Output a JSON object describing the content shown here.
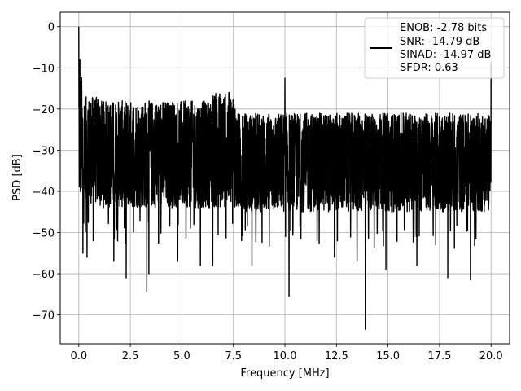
{
  "chart_data": {
    "type": "line",
    "xlabel": "Frequency [MHz]",
    "ylabel": "PSD [dB]",
    "xlim": [
      -0.9,
      20.9
    ],
    "ylim": [
      -77,
      3.5
    ],
    "xticks": [
      0.0,
      2.5,
      5.0,
      7.5,
      10.0,
      12.5,
      15.0,
      17.5,
      20.0
    ],
    "xtick_labels": [
      "0.0",
      "2.5",
      "5.0",
      "7.5",
      "10.0",
      "12.5",
      "15.0",
      "17.5",
      "20.0"
    ],
    "yticks": [
      0,
      -10,
      -20,
      -30,
      -40,
      -50,
      -60,
      -70
    ],
    "ytick_labels": [
      "0",
      "−10",
      "−20",
      "−30",
      "−40",
      "−50",
      "−60",
      "−70"
    ],
    "grid": true,
    "legend_position": "upper right",
    "legend": {
      "entries": [
        "ENOB: -2.78 bits",
        "SNR: -14.79 dB",
        "SINAD: -14.97 dB",
        "SFDR: 0.63"
      ]
    },
    "series": [
      {
        "color": "#000000",
        "noise_band": [
          {
            "x_range": [
              0.0,
              0.15
            ],
            "upper": -15,
            "lower": -45
          },
          {
            "x_range": [
              0.15,
              1.0
            ],
            "upper": -20,
            "lower": -46
          },
          {
            "x_range": [
              1.0,
              6.5
            ],
            "upper": -21,
            "lower": -47
          },
          {
            "x_range": [
              6.5,
              7.6
            ],
            "upper": -19,
            "lower": -47
          },
          {
            "x_range": [
              7.6,
              20.0
            ],
            "upper": -24,
            "lower": -48
          }
        ],
        "peaks": [
          {
            "x": 0.0,
            "y": 0
          },
          {
            "x": 0.05,
            "y": -8
          },
          {
            "x": 7.3,
            "y": -16
          },
          {
            "x": 10.0,
            "y": -12.5
          },
          {
            "x": 20.0,
            "y": -8.5
          }
        ],
        "dips": [
          {
            "x": 0.2,
            "y": -55
          },
          {
            "x": 0.4,
            "y": -56
          },
          {
            "x": 0.7,
            "y": -52
          },
          {
            "x": 1.7,
            "y": -57
          },
          {
            "x": 2.3,
            "y": -61
          },
          {
            "x": 3.3,
            "y": -64.5
          },
          {
            "x": 3.4,
            "y": -60
          },
          {
            "x": 4.8,
            "y": -57
          },
          {
            "x": 5.9,
            "y": -58
          },
          {
            "x": 6.5,
            "y": -58
          },
          {
            "x": 7.9,
            "y": -52
          },
          {
            "x": 8.4,
            "y": -58
          },
          {
            "x": 10.2,
            "y": -65.5
          },
          {
            "x": 12.4,
            "y": -56
          },
          {
            "x": 13.5,
            "y": -57
          },
          {
            "x": 13.9,
            "y": -73.5
          },
          {
            "x": 14.9,
            "y": -59
          },
          {
            "x": 16.4,
            "y": -58
          },
          {
            "x": 17.9,
            "y": -61
          },
          {
            "x": 19.0,
            "y": -61.5
          }
        ]
      }
    ]
  }
}
